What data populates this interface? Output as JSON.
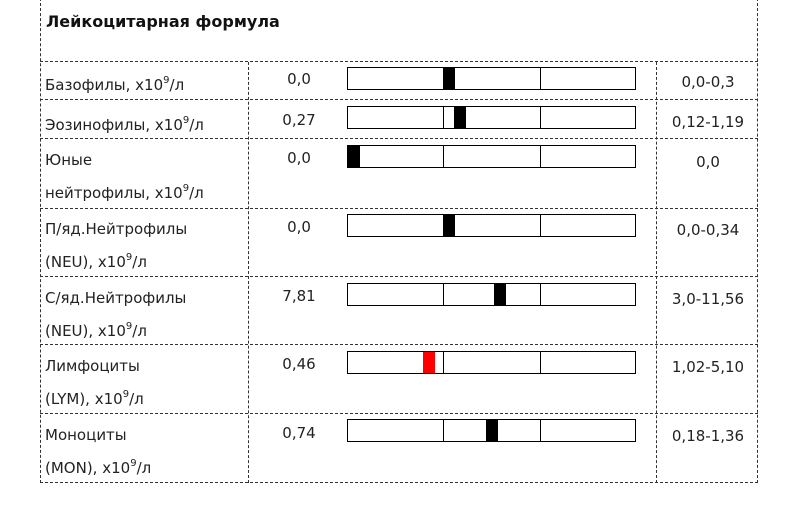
{
  "title": "Лейкоцитарная формула",
  "colors": {
    "marker_normal": "#000000",
    "marker_out_of_range": "#ff0000"
  },
  "rows": [
    {
      "name_lines": [
        "Базофилы, х10",
        "9",
        "/л"
      ],
      "value": "0,0",
      "norm": "0,0-0,3",
      "level": 0.33,
      "out_of_range": false
    },
    {
      "name_lines": [
        "Эозинофилы, х10",
        "9",
        "/л"
      ],
      "value": "0,27",
      "norm": "0,12-1,19",
      "level": 0.37,
      "out_of_range": false
    },
    {
      "name_line1": "Юные",
      "name_line2": [
        "нейтрофилы, х10",
        "9",
        "/л"
      ],
      "value": "0,0",
      "norm": "0,0",
      "level": 0.0,
      "out_of_range": false
    },
    {
      "name_line1": "П/яд.Нейтрофилы",
      "name_line2": [
        "(NEU), х10",
        "9",
        "/л"
      ],
      "value": "0,0",
      "norm": "0,0-0,34",
      "level": 0.33,
      "out_of_range": false
    },
    {
      "name_line1": "С/яд.Нейтрофилы",
      "name_line2": [
        "(NEU), х10",
        "9",
        "/л"
      ],
      "value": "7,81",
      "norm": "3,0-11,56",
      "level": 0.51,
      "out_of_range": false
    },
    {
      "name_line1": "Лимфоциты",
      "name_line2": [
        "(LYM), х10",
        "9",
        "/л"
      ],
      "value": "0,46",
      "norm": "1,02-5,10",
      "level": 0.26,
      "out_of_range": true
    },
    {
      "name_line1": "Моноциты",
      "name_line2": [
        "(MON), х10",
        "9",
        "/л"
      ],
      "value": "0,74",
      "norm": "0,18-1,36",
      "level": 0.48,
      "out_of_range": false
    }
  ]
}
